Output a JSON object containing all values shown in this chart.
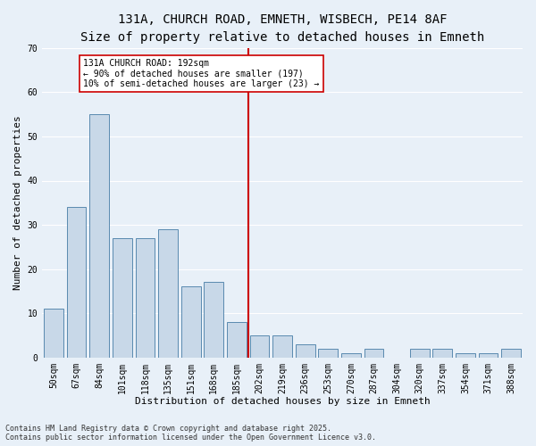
{
  "title_line1": "131A, CHURCH ROAD, EMNETH, WISBECH, PE14 8AF",
  "title_line2": "Size of property relative to detached houses in Emneth",
  "xlabel": "Distribution of detached houses by size in Emneth",
  "ylabel": "Number of detached properties",
  "categories": [
    "50sqm",
    "67sqm",
    "84sqm",
    "101sqm",
    "118sqm",
    "135sqm",
    "151sqm",
    "168sqm",
    "185sqm",
    "202sqm",
    "219sqm",
    "236sqm",
    "253sqm",
    "270sqm",
    "287sqm",
    "304sqm",
    "320sqm",
    "337sqm",
    "354sqm",
    "371sqm",
    "388sqm"
  ],
  "values": [
    11,
    34,
    55,
    27,
    27,
    29,
    16,
    17,
    8,
    5,
    5,
    3,
    2,
    1,
    2,
    0,
    2,
    2,
    1,
    1,
    2
  ],
  "bar_color": "#c8d8e8",
  "bar_edge_color": "#5a8ab0",
  "vline_x": 8.5,
  "vline_color": "#cc0000",
  "ylim": [
    0,
    70
  ],
  "yticks": [
    0,
    10,
    20,
    30,
    40,
    50,
    60,
    70
  ],
  "annotation_title": "131A CHURCH ROAD: 192sqm",
  "annotation_line2": "← 90% of detached houses are smaller (197)",
  "annotation_line3": "10% of semi-detached houses are larger (23) →",
  "annotation_box_facecolor": "#ffffff",
  "annotation_box_edgecolor": "#cc0000",
  "bg_color": "#e8f0f8",
  "footer_line1": "Contains HM Land Registry data © Crown copyright and database right 2025.",
  "footer_line2": "Contains public sector information licensed under the Open Government Licence v3.0.",
  "grid_color": "#ffffff",
  "title_fontsize": 10,
  "subtitle_fontsize": 9,
  "axis_label_fontsize": 8,
  "tick_fontsize": 7,
  "annotation_fontsize": 7,
  "footer_fontsize": 6
}
